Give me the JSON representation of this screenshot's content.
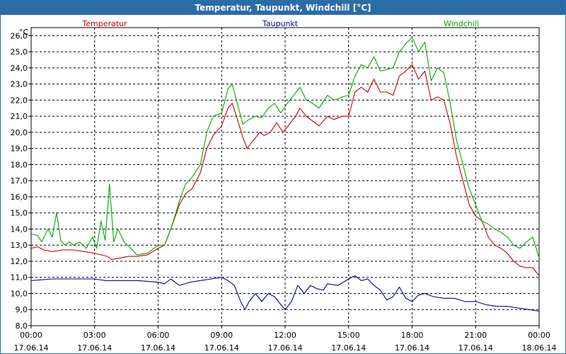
{
  "window": {
    "title": "Temperatur, Taupunkt, Windchill [°C]"
  },
  "chart_data": {
    "type": "line",
    "title": "Temperatur, Taupunkt, Windchill [°C]",
    "ylabel": "°C",
    "ylim": [
      8,
      26.5
    ],
    "yticks": [
      "26,0",
      "25,0",
      "24,0",
      "23,0",
      "22,0",
      "21,0",
      "20,0",
      "19,0",
      "18,0",
      "17,0",
      "16,0",
      "15,0",
      "14,0",
      "13,0",
      "12,0",
      "11,0",
      "10,0",
      "9,0",
      "8,0"
    ],
    "xlim": [
      0,
      24
    ],
    "xticks": [
      {
        "time": "00:00",
        "date": "17.06.14"
      },
      {
        "time": "03:00",
        "date": "17.06.14"
      },
      {
        "time": "06:00",
        "date": "17.06.14"
      },
      {
        "time": "09:00",
        "date": "17.06.14"
      },
      {
        "time": "12:00",
        "date": "17.06.14"
      },
      {
        "time": "15:00",
        "date": "17.06.14"
      },
      {
        "time": "18:00",
        "date": "17.06.14"
      },
      {
        "time": "21:00",
        "date": "17.06.14"
      },
      {
        "time": "00:00",
        "date": "18.06.14"
      }
    ],
    "grid": true,
    "series": [
      {
        "name": "Temperatur",
        "color": "#cc0000",
        "points": [
          [
            0,
            12.8
          ],
          [
            0.3,
            12.9
          ],
          [
            0.6,
            12.7
          ],
          [
            1,
            12.6
          ],
          [
            1.5,
            12.7
          ],
          [
            2,
            12.7
          ],
          [
            2.5,
            12.6
          ],
          [
            3,
            12.5
          ],
          [
            3.3,
            12.4
          ],
          [
            3.6,
            12.3
          ],
          [
            3.8,
            12.1
          ],
          [
            4.2,
            12.2
          ],
          [
            4.6,
            12.3
          ],
          [
            5,
            12.3
          ],
          [
            5.5,
            12.4
          ],
          [
            6,
            12.8
          ],
          [
            6.3,
            13.0
          ],
          [
            6.6,
            14.0
          ],
          [
            7,
            15.5
          ],
          [
            7.3,
            16.2
          ],
          [
            7.6,
            16.5
          ],
          [
            8,
            17.5
          ],
          [
            8.3,
            19.0
          ],
          [
            8.6,
            19.8
          ],
          [
            9,
            20.4
          ],
          [
            9.3,
            21.5
          ],
          [
            9.5,
            21.8
          ],
          [
            9.7,
            21.0
          ],
          [
            10,
            19.7
          ],
          [
            10.2,
            19.0
          ],
          [
            10.5,
            19.5
          ],
          [
            10.8,
            20.0
          ],
          [
            11,
            19.8
          ],
          [
            11.3,
            20.0
          ],
          [
            11.6,
            20.6
          ],
          [
            11.9,
            20.0
          ],
          [
            12.2,
            20.5
          ],
          [
            12.5,
            21.0
          ],
          [
            12.7,
            21.5
          ],
          [
            13,
            21.0
          ],
          [
            13.3,
            20.7
          ],
          [
            13.6,
            20.4
          ],
          [
            14,
            21.0
          ],
          [
            14.3,
            20.8
          ],
          [
            14.7,
            21.0
          ],
          [
            15,
            21.0
          ],
          [
            15.3,
            22.5
          ],
          [
            15.6,
            22.8
          ],
          [
            15.9,
            22.5
          ],
          [
            16.2,
            23.3
          ],
          [
            16.5,
            22.5
          ],
          [
            16.8,
            22.5
          ],
          [
            17.1,
            22.3
          ],
          [
            17.4,
            23.5
          ],
          [
            17.7,
            23.8
          ],
          [
            18,
            24.2
          ],
          [
            18.3,
            23.3
          ],
          [
            18.6,
            23.8
          ],
          [
            18.9,
            22.0
          ],
          [
            19.2,
            22.2
          ],
          [
            19.5,
            22.0
          ],
          [
            19.8,
            20.5
          ],
          [
            20.1,
            18.5
          ],
          [
            20.4,
            17.0
          ],
          [
            20.7,
            15.5
          ],
          [
            21,
            14.8
          ],
          [
            21.3,
            14.5
          ],
          [
            21.6,
            13.5
          ],
          [
            21.9,
            13.0
          ],
          [
            22.2,
            12.8
          ],
          [
            22.5,
            12.5
          ],
          [
            22.8,
            12.0
          ],
          [
            23.1,
            11.7
          ],
          [
            23.4,
            11.6
          ],
          [
            23.7,
            11.6
          ],
          [
            24,
            11.1
          ]
        ]
      },
      {
        "name": "Taupunkt",
        "color": "#0000aa",
        "points": [
          [
            0,
            10.8
          ],
          [
            1,
            10.9
          ],
          [
            2,
            10.9
          ],
          [
            3,
            10.9
          ],
          [
            3.5,
            10.8
          ],
          [
            4,
            10.8
          ],
          [
            5,
            10.8
          ],
          [
            6,
            10.7
          ],
          [
            6.3,
            10.6
          ],
          [
            6.6,
            10.9
          ],
          [
            7,
            10.5
          ],
          [
            7.5,
            10.7
          ],
          [
            8,
            10.8
          ],
          [
            8.5,
            10.9
          ],
          [
            9,
            11.0
          ],
          [
            9.3,
            10.8
          ],
          [
            9.6,
            10.5
          ],
          [
            9.9,
            9.5
          ],
          [
            10.1,
            9.0
          ],
          [
            10.3,
            9.5
          ],
          [
            10.6,
            10.0
          ],
          [
            10.9,
            9.5
          ],
          [
            11.2,
            10.0
          ],
          [
            11.5,
            9.8
          ],
          [
            11.8,
            9.3
          ],
          [
            12,
            9.0
          ],
          [
            12.3,
            9.5
          ],
          [
            12.6,
            10.5
          ],
          [
            12.9,
            10.0
          ],
          [
            13.2,
            10.5
          ],
          [
            13.5,
            10.3
          ],
          [
            13.8,
            10.2
          ],
          [
            14,
            10.6
          ],
          [
            14.5,
            10.5
          ],
          [
            15,
            10.9
          ],
          [
            15.3,
            11.1
          ],
          [
            15.6,
            10.8
          ],
          [
            15.9,
            10.9
          ],
          [
            16.2,
            10.5
          ],
          [
            16.5,
            10.2
          ],
          [
            16.8,
            9.6
          ],
          [
            17.1,
            9.8
          ],
          [
            17.4,
            10.4
          ],
          [
            17.7,
            9.7
          ],
          [
            18,
            9.5
          ],
          [
            18.3,
            9.9
          ],
          [
            18.6,
            10.0
          ],
          [
            19,
            9.8
          ],
          [
            19.5,
            9.7
          ],
          [
            20,
            9.7
          ],
          [
            20.5,
            9.5
          ],
          [
            21,
            9.5
          ],
          [
            21.5,
            9.3
          ],
          [
            22,
            9.2
          ],
          [
            22.5,
            9.2
          ],
          [
            23,
            9.1
          ],
          [
            23.5,
            9.0
          ],
          [
            24,
            8.9
          ]
        ]
      },
      {
        "name": "Windchill",
        "color": "#00aa00",
        "points": [
          [
            0,
            13.7
          ],
          [
            0.3,
            13.6
          ],
          [
            0.5,
            13.2
          ],
          [
            0.8,
            14.0
          ],
          [
            1,
            13.5
          ],
          [
            1.2,
            15.0
          ],
          [
            1.4,
            13.3
          ],
          [
            1.6,
            13.0
          ],
          [
            1.8,
            13.2
          ],
          [
            2,
            13.0
          ],
          [
            2.3,
            13.2
          ],
          [
            2.6,
            12.8
          ],
          [
            2.9,
            13.5
          ],
          [
            3.1,
            12.8
          ],
          [
            3.3,
            14.5
          ],
          [
            3.5,
            13.3
          ],
          [
            3.7,
            16.8
          ],
          [
            3.9,
            13.2
          ],
          [
            4.1,
            14.0
          ],
          [
            4.4,
            13.2
          ],
          [
            4.7,
            12.8
          ],
          [
            5,
            12.4
          ],
          [
            5.5,
            12.5
          ],
          [
            6,
            13.0
          ],
          [
            6.3,
            13.0
          ],
          [
            6.6,
            14.0
          ],
          [
            7,
            15.7
          ],
          [
            7.3,
            16.8
          ],
          [
            7.6,
            17.2
          ],
          [
            8,
            18.0
          ],
          [
            8.3,
            20.0
          ],
          [
            8.6,
            21.0
          ],
          [
            9,
            21.2
          ],
          [
            9.3,
            22.7
          ],
          [
            9.5,
            23.0
          ],
          [
            9.7,
            22.0
          ],
          [
            10,
            20.5
          ],
          [
            10.3,
            20.8
          ],
          [
            10.6,
            21.0
          ],
          [
            10.9,
            20.9
          ],
          [
            11.2,
            21.5
          ],
          [
            11.5,
            21.8
          ],
          [
            11.8,
            21.2
          ],
          [
            12.1,
            21.8
          ],
          [
            12.4,
            22.3
          ],
          [
            12.7,
            22.8
          ],
          [
            13,
            22.0
          ],
          [
            13.3,
            21.8
          ],
          [
            13.6,
            21.5
          ],
          [
            14,
            22.3
          ],
          [
            14.3,
            22.0
          ],
          [
            14.7,
            22.2
          ],
          [
            15,
            22.3
          ],
          [
            15.3,
            23.5
          ],
          [
            15.6,
            24.2
          ],
          [
            15.9,
            24.0
          ],
          [
            16.2,
            24.7
          ],
          [
            16.5,
            23.8
          ],
          [
            16.8,
            23.9
          ],
          [
            17.1,
            24.0
          ],
          [
            17.4,
            25.0
          ],
          [
            17.7,
            25.5
          ],
          [
            18,
            25.9
          ],
          [
            18.3,
            25.0
          ],
          [
            18.6,
            25.6
          ],
          [
            18.9,
            23.2
          ],
          [
            19.2,
            24.0
          ],
          [
            19.5,
            23.7
          ],
          [
            19.8,
            21.8
          ],
          [
            20.1,
            19.5
          ],
          [
            20.4,
            18.0
          ],
          [
            20.7,
            16.5
          ],
          [
            21,
            15.5
          ],
          [
            21.3,
            14.5
          ],
          [
            21.6,
            14.3
          ],
          [
            21.9,
            14.0
          ],
          [
            22.2,
            13.8
          ],
          [
            22.5,
            13.5
          ],
          [
            22.8,
            13.0
          ],
          [
            23.1,
            12.8
          ],
          [
            23.4,
            13.2
          ],
          [
            23.7,
            13.5
          ],
          [
            24,
            12.2
          ]
        ]
      }
    ]
  }
}
